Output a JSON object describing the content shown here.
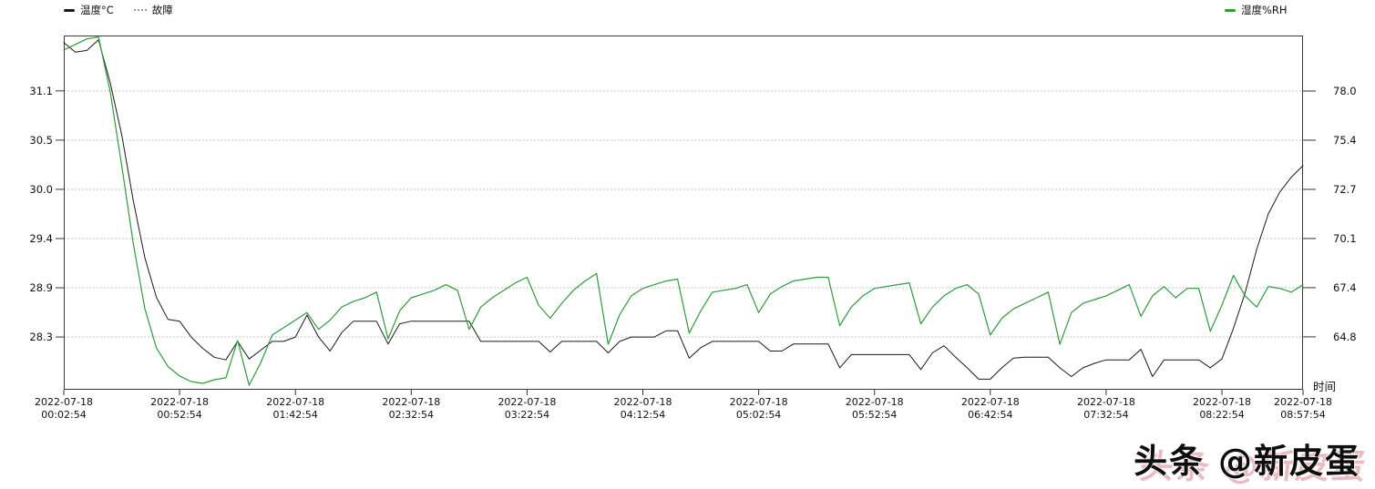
{
  "legend": {
    "items": [
      {
        "id": "temperature",
        "label": "温度°C",
        "color": "#1a1a1a",
        "marker": "line"
      },
      {
        "id": "fault",
        "label": "故障",
        "color": "#9a9a9a",
        "marker": "dots"
      },
      {
        "id": "humidity",
        "label": "湿度%RH",
        "color": "#2f9a3d",
        "marker": "line"
      }
    ]
  },
  "axes": {
    "x_title": "时间",
    "left_ticks": [
      {
        "value": 31.1,
        "label": "31.1"
      },
      {
        "value": 30.54,
        "label": "30.5"
      },
      {
        "value": 29.98,
        "label": "30.0"
      },
      {
        "value": 29.42,
        "label": "29.4"
      },
      {
        "value": 28.86,
        "label": "28.9"
      },
      {
        "value": 28.3,
        "label": "28.3"
      }
    ],
    "right_ticks": [
      {
        "value": 78.0,
        "label": "78.0"
      },
      {
        "value": 75.36,
        "label": "75.4"
      },
      {
        "value": 72.72,
        "label": "72.7"
      },
      {
        "value": 70.08,
        "label": "70.1"
      },
      {
        "value": 67.44,
        "label": "67.4"
      },
      {
        "value": 64.8,
        "label": "64.8"
      }
    ],
    "x_ticks": [
      {
        "date": "2022-07-18",
        "time": "00:02:54"
      },
      {
        "date": "2022-07-18",
        "time": "00:52:54"
      },
      {
        "date": "2022-07-18",
        "time": "01:42:54"
      },
      {
        "date": "2022-07-18",
        "time": "02:32:54"
      },
      {
        "date": "2022-07-18",
        "time": "03:22:54"
      },
      {
        "date": "2022-07-18",
        "time": "04:12:54"
      },
      {
        "date": "2022-07-18",
        "time": "05:02:54"
      },
      {
        "date": "2022-07-18",
        "time": "05:52:54"
      },
      {
        "date": "2022-07-18",
        "time": "06:42:54"
      },
      {
        "date": "2022-07-18",
        "time": "07:32:54"
      },
      {
        "date": "2022-07-18",
        "time": "08:22:54"
      },
      {
        "date": "2022-07-18",
        "time": "08:57:54"
      }
    ]
  },
  "watermark": {
    "text": "头条 @新皮蛋"
  },
  "chart_data": {
    "type": "line",
    "title": "",
    "xlabel": "时间",
    "x_start": "2022-07-18 00:02:54",
    "x_end": "2022-07-18 08:57:54",
    "x_interval_minutes": 5,
    "grid": "horizontal-dashed",
    "legend_position": "top",
    "left_axis": {
      "label": "温度°C",
      "min": 27.7,
      "max": 31.73
    },
    "right_axis": {
      "label": "湿度%RH",
      "min": 61.96,
      "max": 80.98
    },
    "series": [
      {
        "name": "温度°C",
        "axis": "left",
        "color": "#1a1a1a",
        "width": 1,
        "values": [
          31.65,
          31.54,
          31.56,
          31.68,
          31.2,
          30.6,
          29.85,
          29.2,
          28.75,
          28.5,
          28.48,
          28.3,
          28.17,
          28.07,
          28.04,
          28.25,
          28.05,
          28.15,
          28.25,
          28.25,
          28.3,
          28.55,
          28.3,
          28.14,
          28.35,
          28.48,
          28.48,
          28.48,
          28.22,
          28.45,
          28.48,
          28.48,
          28.48,
          28.48,
          28.48,
          28.48,
          28.25,
          28.25,
          28.25,
          28.25,
          28.25,
          28.25,
          28.13,
          28.25,
          28.25,
          28.25,
          28.25,
          28.12,
          28.25,
          28.3,
          28.3,
          28.3,
          28.37,
          28.37,
          28.06,
          28.18,
          28.25,
          28.25,
          28.25,
          28.25,
          28.25,
          28.14,
          28.14,
          28.22,
          28.22,
          28.22,
          28.22,
          27.95,
          28.1,
          28.1,
          28.1,
          28.1,
          28.1,
          28.1,
          27.93,
          28.12,
          28.2,
          28.07,
          27.95,
          27.82,
          27.82,
          27.95,
          28.06,
          28.07,
          28.07,
          28.07,
          27.95,
          27.85,
          27.95,
          28.0,
          28.04,
          28.04,
          28.04,
          28.16,
          27.85,
          28.04,
          28.04,
          28.04,
          28.04,
          27.95,
          28.05,
          28.4,
          28.8,
          29.3,
          29.7,
          29.95,
          30.12,
          30.25
        ]
      },
      {
        "name": "湿度%RH",
        "axis": "right",
        "color": "#2f9a3d",
        "width": 1.2,
        "values": [
          80.2,
          80.5,
          80.8,
          80.9,
          78.0,
          74.0,
          69.8,
          66.3,
          64.2,
          63.2,
          62.7,
          62.4,
          62.3,
          62.5,
          62.6,
          64.6,
          62.2,
          63.4,
          64.9,
          65.3,
          65.7,
          66.1,
          65.2,
          65.7,
          66.4,
          66.7,
          66.9,
          67.2,
          64.7,
          66.2,
          66.9,
          67.1,
          67.3,
          67.6,
          67.3,
          65.2,
          66.4,
          66.9,
          67.3,
          67.7,
          68.0,
          66.5,
          65.8,
          66.6,
          67.3,
          67.8,
          68.2,
          64.4,
          66.0,
          67.0,
          67.4,
          67.6,
          67.8,
          67.9,
          65.0,
          66.2,
          67.2,
          67.3,
          67.4,
          67.6,
          66.1,
          67.1,
          67.5,
          67.8,
          67.9,
          68.0,
          68.0,
          65.4,
          66.4,
          67.0,
          67.4,
          67.5,
          67.6,
          67.7,
          65.5,
          66.4,
          67.0,
          67.4,
          67.6,
          67.1,
          64.9,
          65.8,
          66.3,
          66.6,
          66.9,
          67.2,
          64.4,
          66.1,
          66.6,
          66.8,
          67.0,
          67.3,
          67.6,
          65.9,
          67.0,
          67.5,
          66.9,
          67.4,
          67.4,
          65.1,
          66.5,
          68.1,
          67.0,
          66.4,
          67.5,
          67.4,
          67.2,
          67.6
        ]
      },
      {
        "name": "故障",
        "axis": "left",
        "color": "#9a9a9a",
        "width": 1,
        "values": []
      }
    ]
  }
}
